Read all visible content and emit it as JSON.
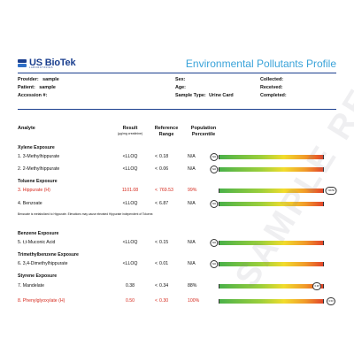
{
  "header": {
    "brand": "US BioTek",
    "brand_sub": "LABORATORIES",
    "title": "Environmental Pollutants Profile"
  },
  "patient_info": {
    "provider_label": "Provider:",
    "provider": "sample",
    "patient_label": "Patient:",
    "patient": "sample",
    "accession_label": "Accession #:",
    "sex_label": "Sex:",
    "age_label": "Age:",
    "sample_type_label": "Sample Type:",
    "sample_type": "Urine Card",
    "collected_label": "Collected:",
    "received_label": "Received:",
    "completed_label": "Completed:"
  },
  "table_headers": {
    "analyte": "Analyte",
    "result": "Result",
    "result_unit": "(µg/mg creatinine)",
    "reference": "Reference",
    "range": "Range",
    "population": "Population",
    "percentile": "Percentile"
  },
  "sections": {
    "xylene": "Xylene Exposure",
    "toluene": "Toluene Exposure",
    "benzene": "Benzene Exposure",
    "trimethyl": "Trimethylbenzene Exposure",
    "styrene": "Styrene Exposure"
  },
  "note": "Benzoate is metabolized to Hippurate. Elevations may cause elevated Hippurate independent of Toluene.",
  "rows": [
    {
      "analyte": "1. 3-Methylhippurate",
      "result": "<LLOQ",
      "cmp": "<",
      "ref": "0.18",
      "pct": "N/A",
      "marker": "N/A",
      "marker_pos": 0.0,
      "flag": false
    },
    {
      "analyte": "2. 2-Methylhippurate",
      "result": "<LLOQ",
      "cmp": "<",
      "ref": "0.06",
      "pct": "N/A",
      "marker": "N/A",
      "marker_pos": 0.0,
      "flag": false
    },
    {
      "analyte": "3. Hippurate (H)",
      "result": "1101.08",
      "cmp": "<",
      "ref": "769.53",
      "pct": "99%",
      "marker": ">99.50",
      "marker_pos": 1.0,
      "flag": true
    },
    {
      "analyte": "4. Benzoate",
      "result": "<LLOQ",
      "cmp": "<",
      "ref": "6.87",
      "pct": "N/A",
      "marker": "N/A",
      "marker_pos": 0.0,
      "flag": false
    },
    {
      "analyte": "5. t,t-Muconic Acid",
      "result": "<LLOQ",
      "cmp": "<",
      "ref": "0.15",
      "pct": "N/A",
      "marker": "N/A",
      "marker_pos": 0.0,
      "flag": false
    },
    {
      "analyte": "6. 3,4-Dimethylhippurate",
      "result": "<LLOQ",
      "cmp": "<",
      "ref": "0.01",
      "pct": "N/A",
      "marker": "N/A",
      "marker_pos": 0.0,
      "flag": false
    },
    {
      "analyte": "7. Mandelate",
      "result": "0.38",
      "cmp": "<",
      "ref": "0.34",
      "pct": "88%",
      "marker": "0.38",
      "marker_pos": 0.88,
      "flag": false
    },
    {
      "analyte": "8. Phenylglyoxylate (H)",
      "result": "0.50",
      "cmp": "<",
      "ref": "0.30",
      "pct": "100%",
      "marker": "0.50",
      "marker_pos": 1.0,
      "flag": true
    }
  ],
  "watermark": "SAMPLE REPORT",
  "colors": {
    "brand": "#1b3f8f",
    "title": "#3aa3d9",
    "flag": "#d62a1e",
    "bar_low": "#49b14a",
    "bar_high": "#e2412a"
  }
}
